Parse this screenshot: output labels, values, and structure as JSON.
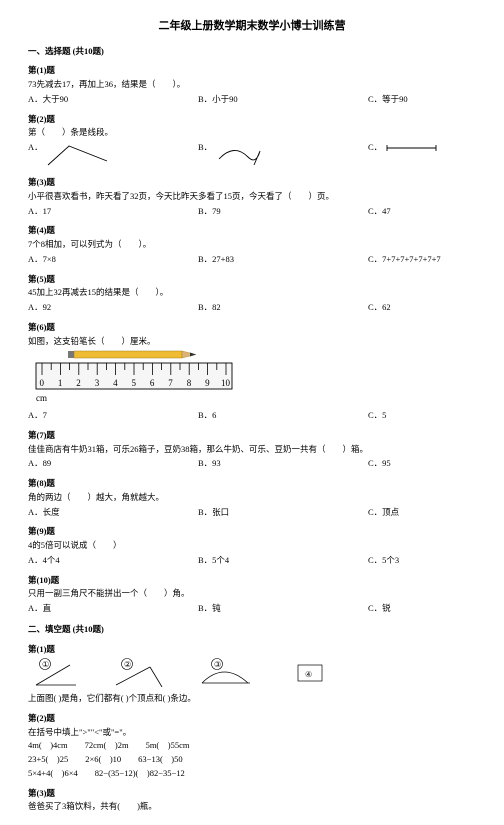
{
  "title": "二年级上册数学期末数学小博士训练营",
  "sec1": "一、选择题 (共10题)",
  "q1": {
    "label": "第(1)题",
    "stem": "73先减去17，再加上36，结果是（　　）。",
    "a": "A．大于90",
    "b": "B．小于90",
    "c": "C．等于90"
  },
  "q2": {
    "label": "第(2)题",
    "stem": "第（　　）条是线段。",
    "a": "A．",
    "b": "B．",
    "c": "C．"
  },
  "q3": {
    "label": "第(3)题",
    "stem": "小平很喜欢看书，昨天看了32页，今天比昨天多看了15页，今天看了（　　）页。",
    "a": "A．17",
    "b": "B．79",
    "c": "C．47"
  },
  "q4": {
    "label": "第(4)题",
    "stem": "7个8相加，可以列式为（　　）。",
    "a": "A．7×8",
    "b": "B．27+83",
    "c": "C．7+7+7+7+7+7+7"
  },
  "q5": {
    "label": "第(5)题",
    "stem": "45加上32再减去15的结果是（　　）。",
    "a": "A．92",
    "b": "B．82",
    "c": "C．62"
  },
  "q6": {
    "label": "第(6)题",
    "stem": "如图，这支铅笔长（　　）厘米。",
    "a": "A．7",
    "b": "B．6",
    "c": "C．5"
  },
  "q7": {
    "label": "第(7)题",
    "stem": "佳佳商店有牛奶31箱，可乐26箱子，豆奶38箱，那么牛奶、可乐、豆奶一共有（　　）箱。",
    "a": "A．89",
    "b": "B．93",
    "c": "C．95"
  },
  "q8": {
    "label": "第(8)题",
    "stem": "角的两边（　　）越大，角就越大。",
    "a": "A．长度",
    "b": "B．张口",
    "c": "C．顶点"
  },
  "q9": {
    "label": "第(9)题",
    "stem": "4的5倍可以说成（　　）",
    "a": "A．4个4",
    "b": "B．5个4",
    "c": "C．5个3"
  },
  "q10": {
    "label": "第(10)题",
    "stem": "只用一副三角尺不能拼出一个（　　）角。",
    "a": "A．直",
    "b": "B．钝",
    "c": "C．锐"
  },
  "sec2": "二、填空题 (共10题)",
  "fq1": {
    "label": "第(1)题",
    "line": "上面图(  )是角，它们都有(  )个顶点和(  )条边。"
  },
  "fq2": {
    "label": "第(2)题",
    "s1": "在括号中填上\">\"\"<\"或\"=\"。",
    "s2": "4m(　)4cm　　72cm(　)2m　　5m(　)55cm",
    "s3": "23+5(　)25　　2×6(　)10　　63−13(　)50",
    "s4": "5×4+4(　)6×4　　82−(35−12)(　)82−35−12"
  },
  "fq3": {
    "label": "第(3)题",
    "stem": "爸爸买了3箱饮料，共有(　　)瓶。"
  },
  "ruler": {
    "ticks": [
      "0",
      "1",
      "2",
      "3",
      "4",
      "5",
      "6",
      "7",
      "8",
      "9",
      "10"
    ],
    "unit": "cm",
    "body_color": "#eebb33",
    "tip_color": "#333333"
  },
  "shapenums": {
    "n1": "①",
    "n2": "②",
    "n3": "③",
    "n4": "④"
  }
}
